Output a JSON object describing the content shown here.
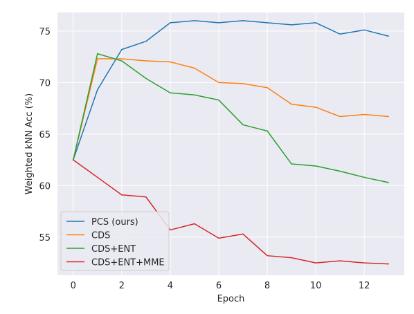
{
  "chart_data": {
    "type": "line",
    "title": "",
    "xlabel": "Epoch",
    "ylabel": "Weighted kNN Acc (%)",
    "xlim": [
      -0.65,
      13.65
    ],
    "ylim": [
      51.3,
      76.8
    ],
    "x_ticks": [
      0,
      2,
      4,
      6,
      8,
      10,
      12
    ],
    "y_ticks": [
      55,
      60,
      65,
      70,
      75
    ],
    "grid": true,
    "background": "#eaeaf2",
    "legend_position": "lower-left",
    "x": [
      0,
      1,
      2,
      3,
      4,
      5,
      6,
      7,
      8,
      9,
      10,
      11,
      12,
      13
    ],
    "series": [
      {
        "name": "PCS (ours)",
        "color": "#1f77b4",
        "values": [
          62.5,
          69.3,
          73.2,
          74.0,
          75.8,
          76.0,
          75.8,
          76.0,
          75.8,
          75.6,
          75.8,
          74.7,
          75.1,
          74.5
        ]
      },
      {
        "name": "CDS",
        "color": "#ff7f0e",
        "values": [
          62.5,
          72.3,
          72.3,
          72.1,
          72.0,
          71.4,
          70.0,
          69.9,
          69.5,
          67.9,
          67.6,
          66.7,
          66.9,
          66.7
        ]
      },
      {
        "name": "CDS+ENT",
        "color": "#2ca02c",
        "values": [
          62.5,
          72.8,
          72.1,
          70.4,
          69.0,
          68.8,
          68.3,
          65.9,
          65.3,
          62.1,
          61.9,
          61.4,
          60.8,
          60.3
        ]
      },
      {
        "name": "CDS+ENT+MME",
        "color": "#d62728",
        "values": [
          62.5,
          60.8,
          59.1,
          58.9,
          55.7,
          56.3,
          54.9,
          55.3,
          53.2,
          53.0,
          52.5,
          52.7,
          52.5,
          52.4
        ]
      }
    ]
  }
}
